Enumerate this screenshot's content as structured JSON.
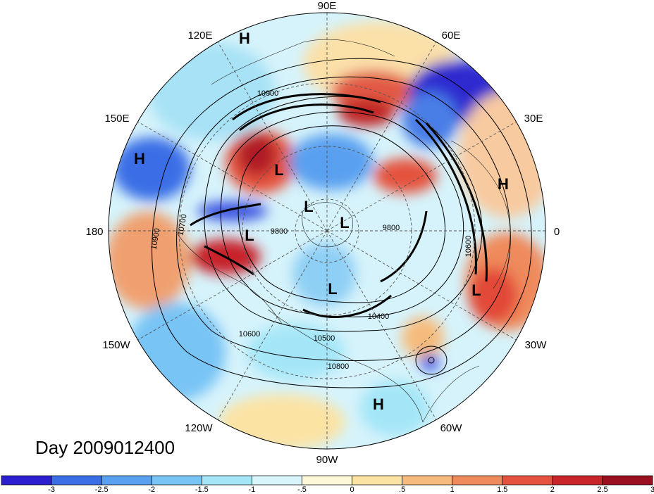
{
  "map": {
    "title": "Day 2009012400",
    "projection": "north-polar-stereographic",
    "longitude_labels": [
      "90E",
      "60E",
      "30E",
      "0",
      "30W",
      "60W",
      "90W",
      "120W",
      "150W",
      "180",
      "150E",
      "120E"
    ],
    "pressure_systems": [
      "H",
      "H",
      "H",
      "H",
      "L",
      "L",
      "L",
      "L",
      "L",
      "L"
    ],
    "contour_labels": [
      "10900",
      "10900",
      "10700",
      "9800",
      "9800",
      "10600",
      "10500",
      "10800",
      "10400",
      "10600"
    ]
  },
  "colorbar": {
    "tick_labels": [
      "-3",
      "-2.5",
      "-2",
      "-1.5",
      "-1",
      "-.5",
      "0",
      ".5",
      "1",
      "1.5",
      "2",
      "2.5",
      "3"
    ],
    "colors": [
      "#2b1fd0",
      "#3a6ee6",
      "#5aa0f0",
      "#78c4f5",
      "#a4e6f8",
      "#d8f5fb",
      "#fdf8d8",
      "#fbe3a4",
      "#f6bb7c",
      "#ef8a5c",
      "#e5523e",
      "#c8242a",
      "#9b1020"
    ]
  }
}
